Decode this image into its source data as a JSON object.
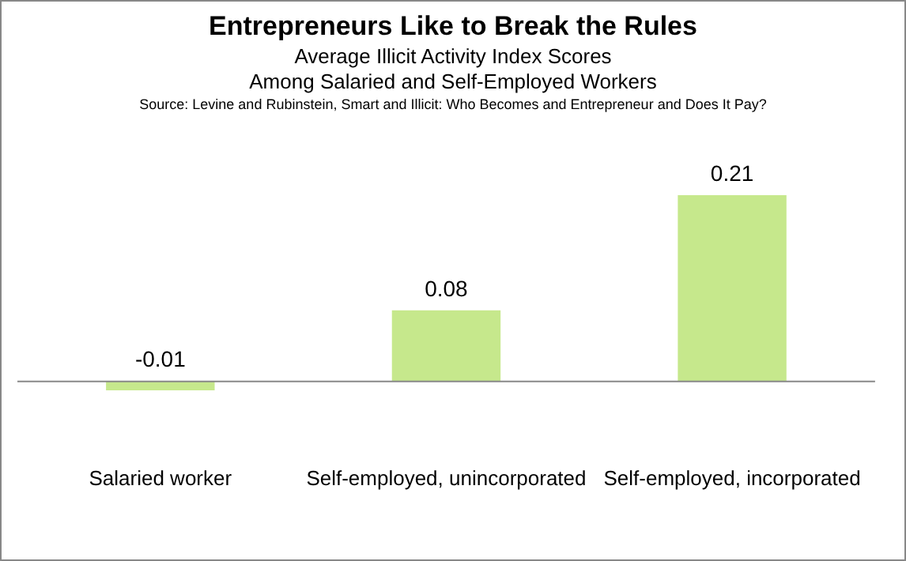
{
  "chart_data": {
    "type": "bar",
    "title": "Entrepreneurs Like to Break the Rules",
    "subtitle": "Average Illicit Activity Index Scores\nAmong Salaried and Self-Employed Workers",
    "annotations": [
      "Source: Levine and Rubinstein, Smart and Illicit: Who Becomes and Entrepreneur and Does It Pay?"
    ],
    "categories": [
      "Salaried worker",
      "Self-employed, unincorporated",
      "Self-employed, incorporated"
    ],
    "values": [
      -0.01,
      0.08,
      0.21
    ],
    "color": "#c6e88c",
    "data_labels": true,
    "grid": false,
    "legend": false
  }
}
